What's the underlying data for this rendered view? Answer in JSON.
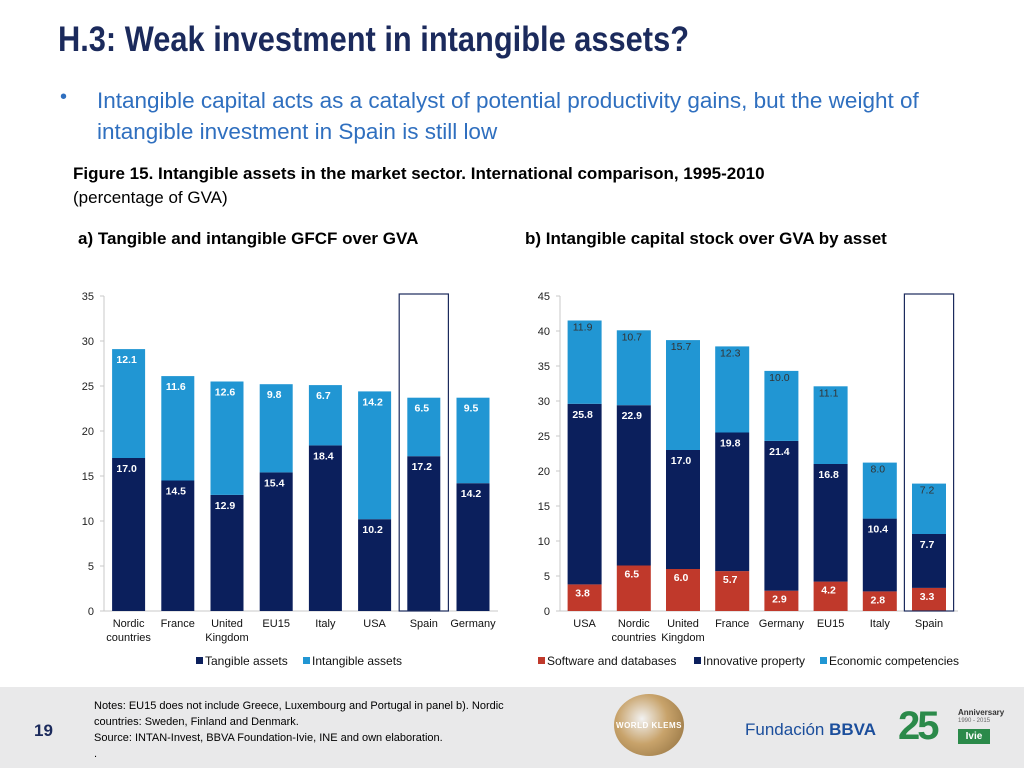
{
  "slide": {
    "title": "H.3: Weak investment in intangible assets?",
    "bullet": "Intangible capital acts as a catalyst of potential productivity gains, but the weight of intangible investment in Spain is still low",
    "figure_title": "Figure 15. Intangible assets in the market sector. International comparison, 1995-2010",
    "figure_subtitle": "(percentage of GVA)",
    "page_number": "19",
    "notes_line1": "Notes: EU15 does not include Greece, Luxembourg and Portugal in panel b). Nordic countries: Sweden, Finland and Denmark.",
    "notes_line2": "Source: INTAN-Invest, BBVA Foundation-Ivie, INE and own elaboration.",
    "notes_line3": ".",
    "logo_world_klems": "WORLD KLEMS",
    "logo_fundacion": "Fundación",
    "logo_bbva": "BBVA",
    "logo_25": "25",
    "logo_anniversary": "Anniversary",
    "logo_years": "1990 - 2015",
    "logo_ivie": "Ivie"
  },
  "colors": {
    "title": "#1b2a5c",
    "bullet": "#2f6fbf",
    "dark_navy": "#0b1f5c",
    "light_blue": "#2196d3",
    "software": "#c0392b",
    "highlight_box": "#1b2a5c"
  },
  "chart_data": [
    {
      "type": "bar",
      "stacked": true,
      "title": "a) Tangible and intangible GFCF over GVA",
      "categories": [
        "Nordic countries",
        "France",
        "United Kingdom",
        "EU15",
        "Italy",
        "USA",
        "Spain",
        "Germany"
      ],
      "category_lines": [
        [
          "Nordic",
          "countries"
        ],
        [
          "France"
        ],
        [
          "United",
          "Kingdom"
        ],
        [
          "EU15"
        ],
        [
          "Italy"
        ],
        [
          "USA"
        ],
        [
          "Spain"
        ],
        [
          "Germany"
        ]
      ],
      "series": [
        {
          "name": "Tangible assets",
          "color": "#0b1f5c",
          "values": [
            17.0,
            14.5,
            12.9,
            15.4,
            18.4,
            10.2,
            17.2,
            14.2
          ]
        },
        {
          "name": "Intangible assets",
          "color": "#2196d3",
          "values": [
            12.1,
            11.6,
            12.6,
            9.8,
            6.7,
            14.2,
            6.5,
            9.5
          ]
        }
      ],
      "ylim": [
        0,
        35
      ],
      "yticks": [
        0,
        5,
        10,
        15,
        20,
        25,
        30,
        35
      ],
      "highlight": "Spain",
      "legend_position": "bottom"
    },
    {
      "type": "bar",
      "stacked": true,
      "title": "b) Intangible capital stock over GVA by asset",
      "categories": [
        "USA",
        "Nordic countries",
        "United Kingdom",
        "France",
        "Germany",
        "EU15",
        "Italy",
        "Spain"
      ],
      "category_lines": [
        [
          "USA"
        ],
        [
          "Nordic",
          "countries"
        ],
        [
          "United",
          "Kingdom"
        ],
        [
          "France"
        ],
        [
          "Germany"
        ],
        [
          "EU15"
        ],
        [
          "Italy"
        ],
        [
          "Spain"
        ]
      ],
      "series": [
        {
          "name": "Software and databases",
          "color": "#c0392b",
          "values": [
            3.8,
            6.5,
            6.0,
            5.7,
            2.9,
            4.2,
            2.8,
            3.3
          ]
        },
        {
          "name": "Innovative property",
          "color": "#0b1f5c",
          "values": [
            25.8,
            22.9,
            17.0,
            19.8,
            21.4,
            16.8,
            10.4,
            7.7
          ]
        },
        {
          "name": "Economic competencies",
          "color": "#2196d3",
          "values": [
            11.9,
            10.7,
            15.7,
            12.3,
            10.0,
            11.1,
            8.0,
            7.2
          ]
        }
      ],
      "ylim": [
        0,
        45
      ],
      "yticks": [
        0,
        5,
        10,
        15,
        20,
        25,
        30,
        35,
        40,
        45
      ],
      "highlight": "Spain",
      "legend_position": "bottom"
    }
  ]
}
